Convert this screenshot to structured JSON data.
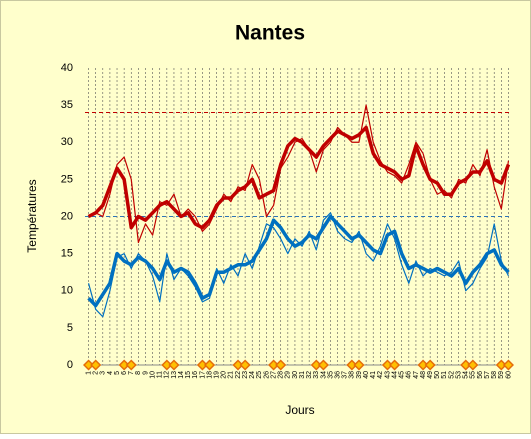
{
  "chart_data": {
    "type": "line",
    "title": "Nantes",
    "y_label": "Températures",
    "x_label": "Jours",
    "ylim": [
      0,
      40
    ],
    "yticks": [
      0,
      5,
      10,
      15,
      20,
      25,
      30,
      35,
      40
    ],
    "grid": true,
    "categories": [
      "1",
      "2",
      "3",
      "4",
      "5",
      "6",
      "7",
      "8",
      "9",
      "10",
      "11",
      "12",
      "13",
      "14",
      "15",
      "16",
      "17",
      "18",
      "19",
      "20",
      "21",
      "22",
      "23",
      "24",
      "25",
      "26",
      "27",
      "28",
      "29",
      "30",
      "31",
      "32",
      "33",
      "34",
      "35",
      "36",
      "37",
      "38",
      "39",
      "40",
      "41",
      "42",
      "43",
      "44",
      "45",
      "46",
      "47",
      "48",
      "49",
      "50",
      "51",
      "52",
      "53",
      "54",
      "55",
      "56",
      "57",
      "58",
      "59",
      "60"
    ],
    "ref_lines": [
      {
        "value": 34,
        "color": "#c00000"
      },
      {
        "value": 20,
        "color": "#2e75b6"
      }
    ],
    "series": [
      {
        "color": "#c00000",
        "width": 1.2,
        "values": [
          20,
          20.5,
          20,
          23,
          27,
          28,
          25,
          16.5,
          19,
          17.5,
          22,
          21.5,
          23,
          20,
          21,
          20,
          18,
          19,
          21,
          23,
          22,
          24,
          23.5,
          27,
          25,
          20,
          21.5,
          26.5,
          28,
          30,
          30.5,
          29,
          26,
          29,
          30,
          32,
          31,
          30,
          30,
          35,
          30,
          27.5,
          26,
          25.5,
          24.5,
          27,
          30,
          28.5,
          25,
          23,
          23.5,
          22.5,
          25,
          24.5,
          27,
          25.5,
          29,
          24,
          21,
          27.5
        ]
      },
      {
        "color": "#c00000",
        "width": 3.5,
        "values": [
          20,
          20.5,
          21.5,
          24,
          26.5,
          25,
          18.5,
          20,
          19.5,
          20.5,
          21.5,
          22,
          21,
          20,
          20.5,
          19,
          18.5,
          19.5,
          21.5,
          22.5,
          22.5,
          23.5,
          24,
          25,
          22.5,
          23,
          23.5,
          27,
          29.5,
          30.5,
          30,
          29,
          28,
          29.5,
          30.5,
          31.5,
          31,
          30.5,
          31,
          32,
          28.5,
          27,
          26.5,
          26,
          25,
          25.5,
          29.5,
          27,
          25,
          24.5,
          23,
          23,
          24.5,
          25,
          26,
          26,
          27.5,
          25,
          24.5,
          27
        ]
      },
      {
        "color": "#0070c0",
        "width": 1.2,
        "values": [
          11,
          7.5,
          6.5,
          10,
          14.5,
          15,
          13,
          15,
          14,
          12,
          8.5,
          15,
          11.5,
          13,
          12,
          10.5,
          8.5,
          9,
          13,
          11,
          13.5,
          12,
          15,
          13,
          16,
          19,
          18.5,
          17,
          15,
          17,
          16,
          18,
          15.5,
          19.5,
          20.5,
          18,
          17,
          16.5,
          18,
          15,
          14,
          16,
          19,
          17,
          13.5,
          11,
          14,
          12,
          13,
          12.5,
          12,
          12.5,
          14,
          10,
          11,
          13,
          14.5,
          19,
          14,
          12
        ]
      },
      {
        "color": "#0070c0",
        "width": 3.5,
        "values": [
          9,
          8,
          9.5,
          11,
          15,
          14,
          13.5,
          14.5,
          14,
          13,
          11.5,
          14,
          12.5,
          13,
          12.5,
          11,
          9,
          9.5,
          12.5,
          12.5,
          13,
          13.5,
          13.5,
          14,
          15.5,
          17,
          19.5,
          18.5,
          17,
          16,
          16.5,
          17.5,
          17,
          18.5,
          20,
          19,
          18,
          17,
          17.5,
          16.5,
          15.5,
          15,
          17.5,
          18,
          15,
          13,
          13.5,
          13,
          12.5,
          13,
          12.5,
          12,
          13,
          11,
          12.5,
          13.5,
          15,
          15.5,
          13.5,
          12.5
        ]
      },
      {
        "color": "#e46c0a",
        "marker": "diamond",
        "values": [
          0,
          0,
          null,
          null,
          null,
          0,
          0,
          null,
          null,
          null,
          null,
          0,
          0,
          null,
          null,
          null,
          0,
          0,
          null,
          null,
          null,
          0,
          0,
          null,
          null,
          null,
          0,
          0,
          null,
          null,
          null,
          null,
          0,
          0,
          null,
          null,
          null,
          0,
          0,
          null,
          null,
          null,
          0,
          0,
          null,
          null,
          null,
          0,
          0,
          null,
          null,
          null,
          null,
          0,
          0,
          null,
          null,
          null,
          0,
          0
        ]
      }
    ]
  }
}
